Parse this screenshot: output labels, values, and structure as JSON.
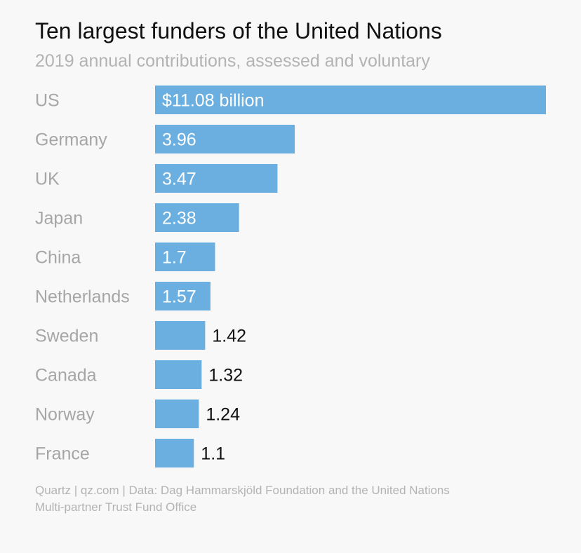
{
  "header": {
    "title": "Ten largest funders of the United Nations",
    "subtitle": "2019 annual contributions, assessed and voluntary"
  },
  "footer": {
    "line1": "Quartz | qz.com | Data: Dag Hammarskjöld Foundation and the United Nations",
    "line2": "Multi-partner Trust Fund Office"
  },
  "chart_data": {
    "type": "bar",
    "orientation": "horizontal",
    "title": "Ten largest funders of the United Nations",
    "subtitle": "2019 annual contributions, assessed and voluntary",
    "categories": [
      "US",
      "Germany",
      "UK",
      "Japan",
      "China",
      "Netherlands",
      "Sweden",
      "Canada",
      "Norway",
      "France"
    ],
    "values": [
      11.08,
      3.96,
      3.47,
      2.38,
      1.7,
      1.57,
      1.42,
      1.32,
      1.24,
      1.1
    ],
    "data_labels": [
      "$11.08 billion",
      "3.96",
      "3.47",
      "2.38",
      "1.7",
      "1.57",
      "1.42",
      "1.32",
      "1.24",
      "1.1"
    ],
    "xlim": [
      0,
      11.08
    ],
    "grid": false,
    "legend": "none",
    "colors": {
      "bar": "#6aafe0",
      "category_label": "#a6a6a6",
      "label_inside": "#ffffff",
      "label_outside": "#111111"
    }
  }
}
